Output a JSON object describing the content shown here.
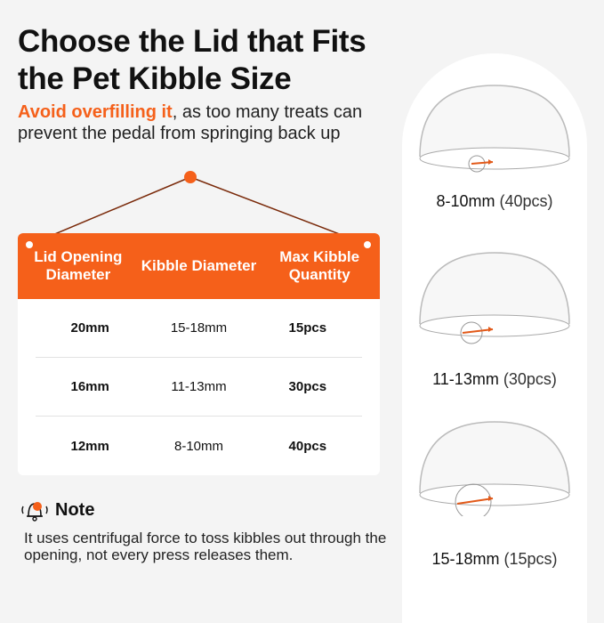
{
  "title": [
    "Choose the Lid that Fits",
    "the Pet Kibble Size"
  ],
  "subtitle": {
    "highlight": "Avoid overfilling it",
    "rest": ", as too many treats can prevent the pedal from springing back up"
  },
  "table": {
    "headers": [
      "Lid Opening Diameter",
      "Kibble Diameter",
      "Max Kibble Quantity"
    ],
    "rows": [
      [
        "20mm",
        "15-18mm",
        "15pcs"
      ],
      [
        "16mm",
        "11-13mm",
        "30pcs"
      ],
      [
        "12mm",
        "8-10mm",
        "40pcs"
      ]
    ]
  },
  "note": {
    "icon": "bell-icon",
    "title": "Note",
    "text": "It uses centrifugal force to toss kibbles out through the opening, not every press releases them."
  },
  "lids": [
    {
      "size": "8-10mm",
      "qty": "(40pcs)"
    },
    {
      "size": "11-13mm",
      "qty": "(30pcs)"
    },
    {
      "size": "15-18mm",
      "qty": "(15pcs)"
    }
  ],
  "colors": {
    "accent": "#f5601a",
    "background": "#f4f4f4"
  }
}
